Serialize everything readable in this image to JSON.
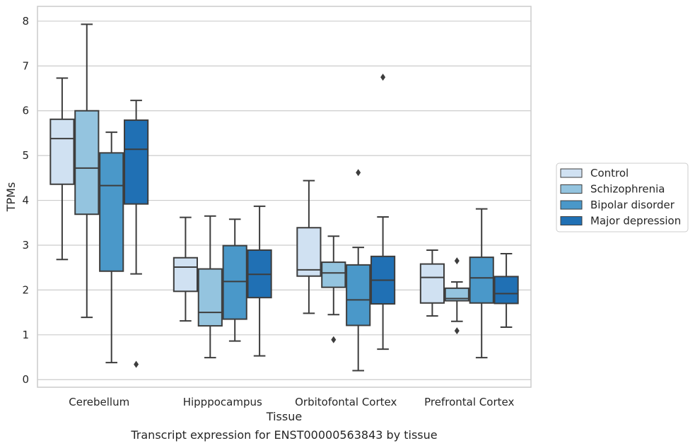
{
  "caption": "Transcript expression for ENST00000563843 by tissue",
  "chart_data": {
    "type": "box",
    "xlabel": "Tissue",
    "ylabel": "TPMs",
    "ylim": [
      -0.17,
      8.33
    ],
    "yticks": [
      0,
      1,
      2,
      3,
      4,
      5,
      6,
      7,
      8
    ],
    "grid": true,
    "legend_placement": "right",
    "categories": [
      "Cerebellum",
      "Hipppocampus",
      "Orbitofontal Cortex",
      "Prefrontal Cortex"
    ],
    "series": [
      {
        "name": "Control",
        "color": "#d0e1f2",
        "boxes": [
          {
            "whisker_low": 2.68,
            "q1": 4.36,
            "median": 5.38,
            "q3": 5.81,
            "whisker_high": 6.73,
            "outliers": []
          },
          {
            "whisker_low": 1.31,
            "q1": 1.97,
            "median": 2.51,
            "q3": 2.72,
            "whisker_high": 3.62,
            "outliers": []
          },
          {
            "whisker_low": 1.48,
            "q1": 2.31,
            "median": 2.45,
            "q3": 3.39,
            "whisker_high": 4.44,
            "outliers": []
          },
          {
            "whisker_low": 1.42,
            "q1": 1.71,
            "median": 2.28,
            "q3": 2.58,
            "whisker_high": 2.89,
            "outliers": []
          }
        ]
      },
      {
        "name": "Schizophrenia",
        "color": "#94c4df",
        "boxes": [
          {
            "whisker_low": 1.39,
            "q1": 3.69,
            "median": 4.72,
            "q3": 6.0,
            "whisker_high": 7.93,
            "outliers": []
          },
          {
            "whisker_low": 0.49,
            "q1": 1.2,
            "median": 1.5,
            "q3": 2.47,
            "whisker_high": 3.65,
            "outliers": []
          },
          {
            "whisker_low": 1.45,
            "q1": 2.06,
            "median": 2.38,
            "q3": 2.62,
            "whisker_high": 3.2,
            "outliers": [
              0.89
            ]
          },
          {
            "whisker_low": 1.3,
            "q1": 1.76,
            "median": 1.81,
            "q3": 2.04,
            "whisker_high": 2.18,
            "outliers": [
              2.65,
              1.09
            ]
          }
        ]
      },
      {
        "name": "Bipolar disorder",
        "color": "#4a98c9",
        "boxes": [
          {
            "whisker_low": 0.38,
            "q1": 2.42,
            "median": 4.33,
            "q3": 5.06,
            "whisker_high": 5.52,
            "outliers": []
          },
          {
            "whisker_low": 0.86,
            "q1": 1.35,
            "median": 2.19,
            "q3": 2.99,
            "whisker_high": 3.58,
            "outliers": []
          },
          {
            "whisker_low": 0.2,
            "q1": 1.21,
            "median": 1.78,
            "q3": 2.56,
            "whisker_high": 2.95,
            "outliers": [
              4.62
            ]
          },
          {
            "whisker_low": 0.49,
            "q1": 1.71,
            "median": 2.27,
            "q3": 2.73,
            "whisker_high": 3.81,
            "outliers": []
          }
        ]
      },
      {
        "name": "Major depression",
        "color": "#2070b4",
        "boxes": [
          {
            "whisker_low": 2.36,
            "q1": 3.92,
            "median": 5.14,
            "q3": 5.79,
            "whisker_high": 6.23,
            "outliers": [
              0.34
            ]
          },
          {
            "whisker_low": 0.53,
            "q1": 1.83,
            "median": 2.35,
            "q3": 2.89,
            "whisker_high": 3.87,
            "outliers": []
          },
          {
            "whisker_low": 0.68,
            "q1": 1.69,
            "median": 2.22,
            "q3": 2.75,
            "whisker_high": 3.63,
            "outliers": [
              6.75
            ]
          },
          {
            "whisker_low": 1.17,
            "q1": 1.7,
            "median": 1.92,
            "q3": 2.3,
            "whisker_high": 2.81,
            "outliers": []
          }
        ]
      }
    ]
  }
}
